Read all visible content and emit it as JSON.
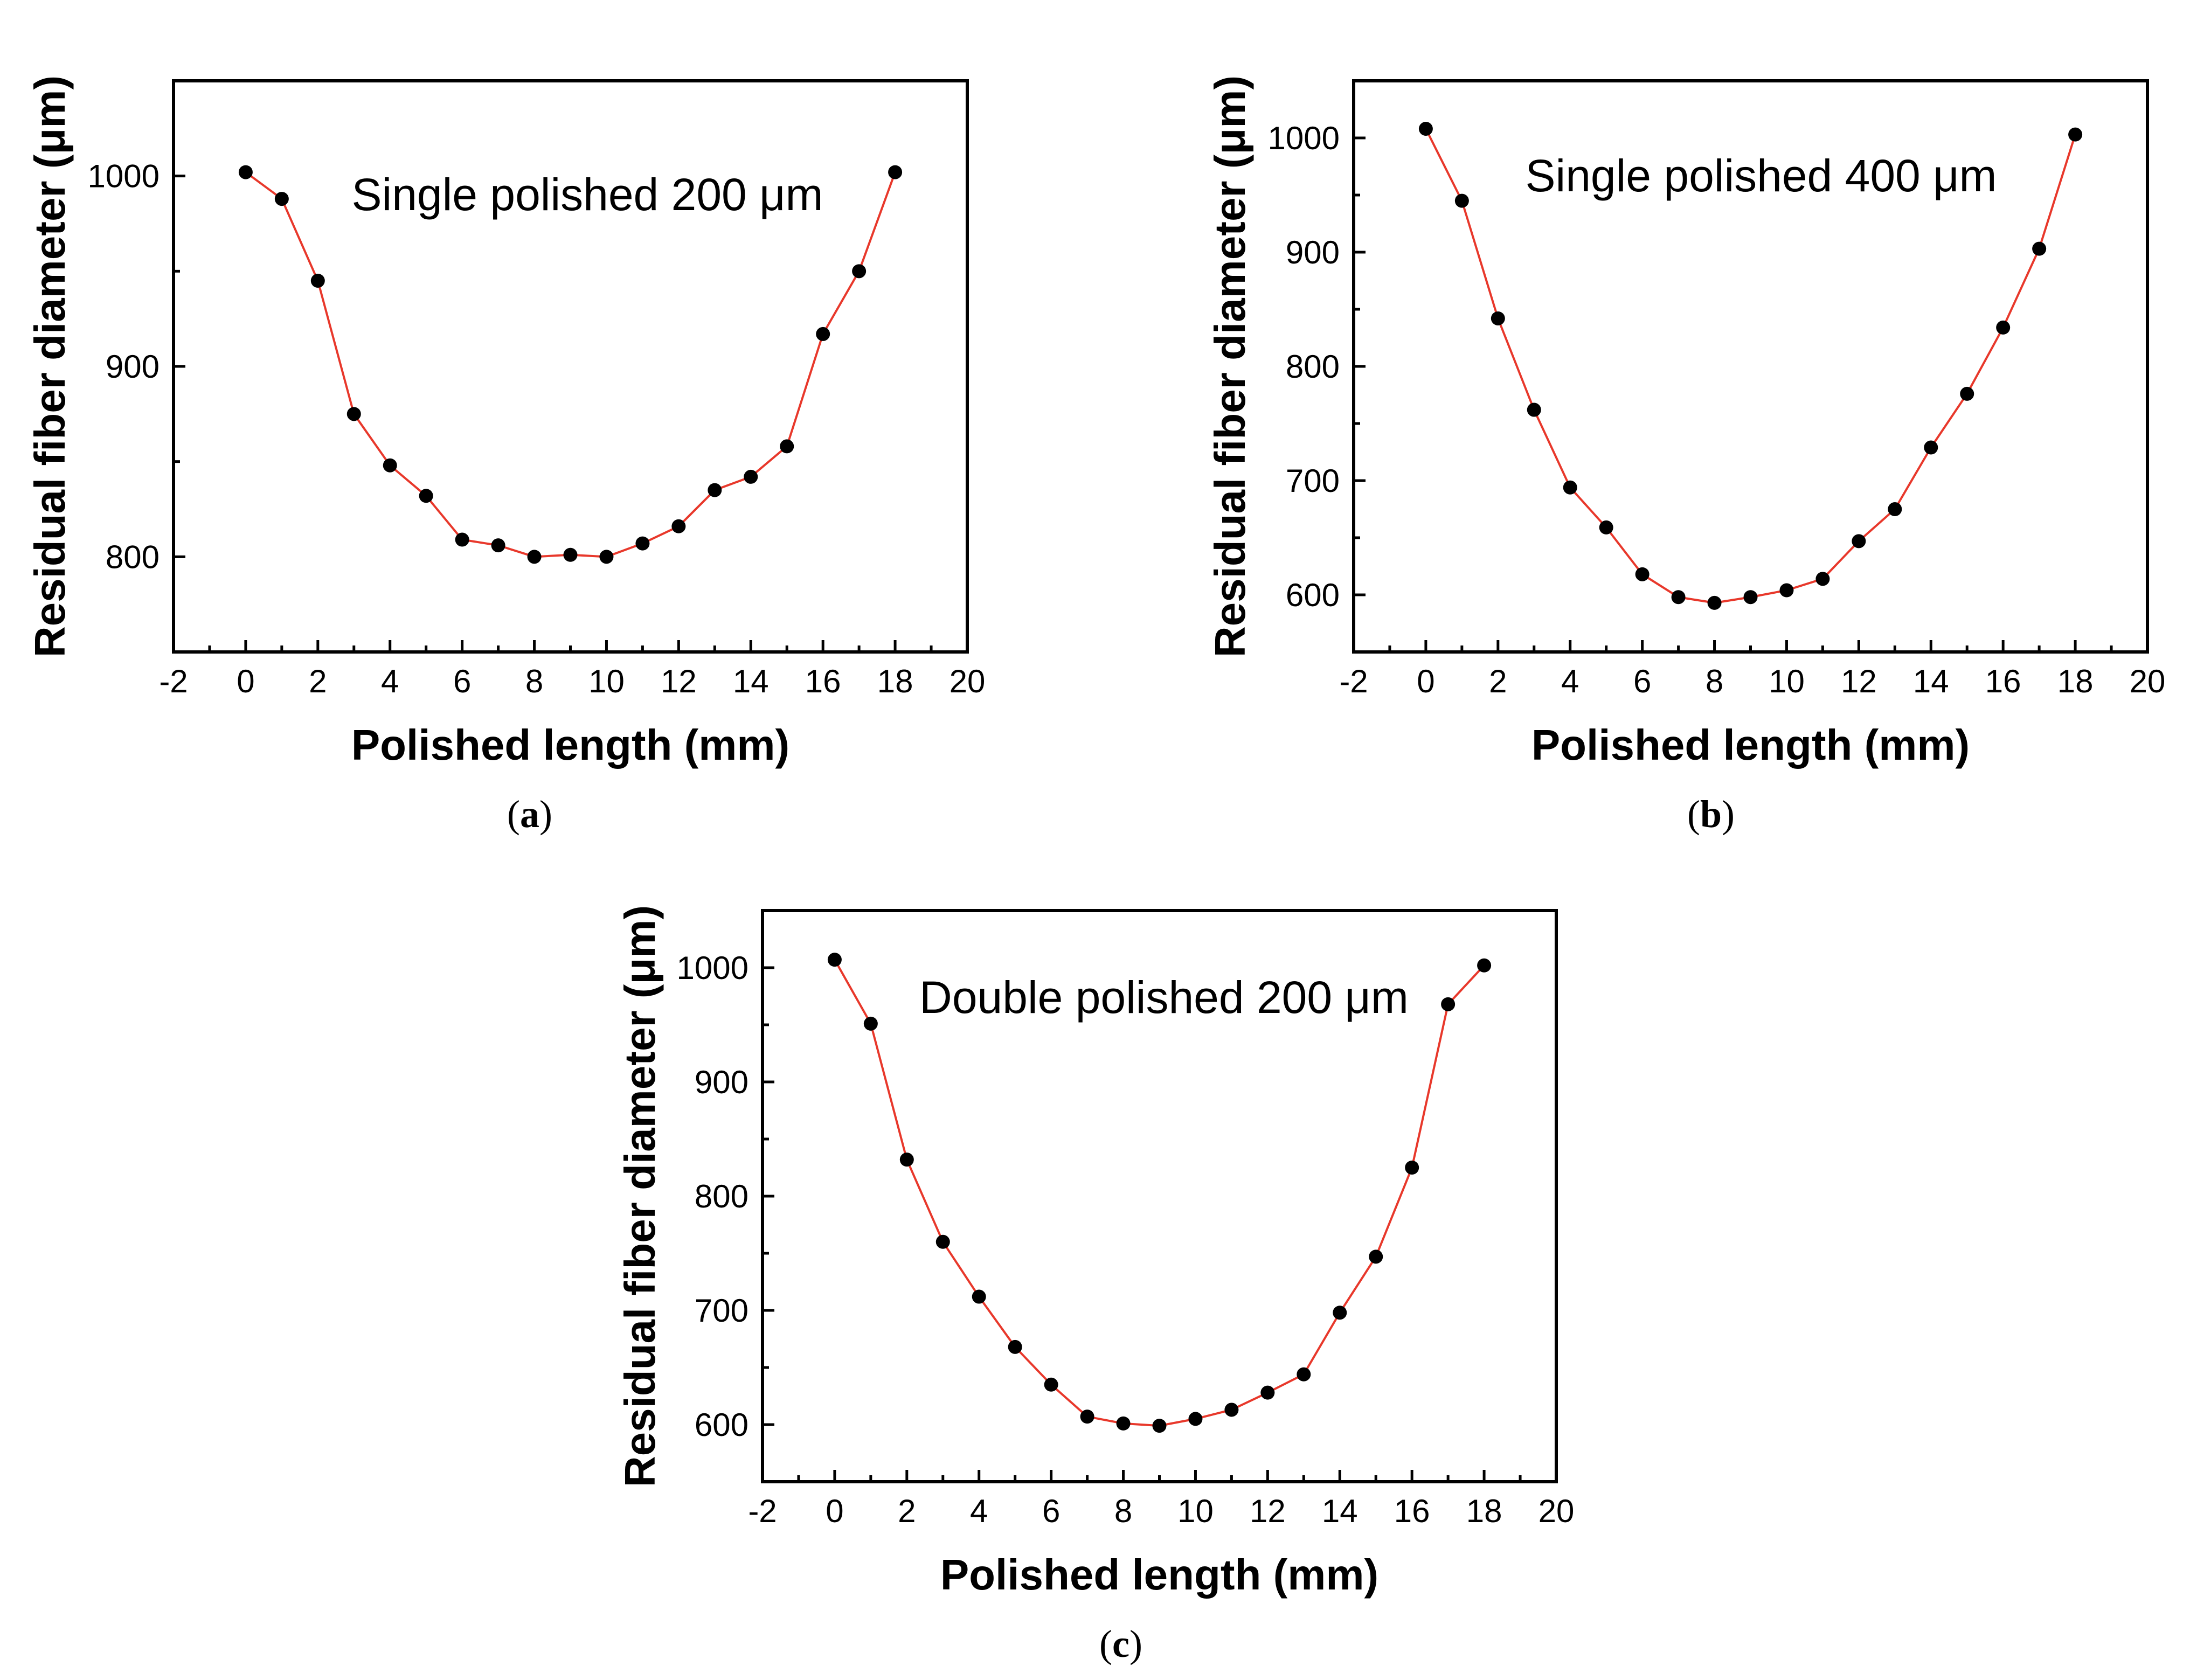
{
  "chart_data": [
    {
      "id": "a",
      "type": "line",
      "caption": "(a)",
      "caption_parts": [
        "(",
        "a",
        ")"
      ],
      "annotation": "Single polished 200 μm",
      "xlabel": "Polished length (mm)",
      "ylabel": "Residual fiber diameter (μm)",
      "xlim": [
        -2,
        20
      ],
      "ylim": [
        750,
        1050
      ],
      "xticks": [
        "-2",
        "0",
        "2",
        "4",
        "6",
        "8",
        "10",
        "12",
        "14",
        "16",
        "18",
        "20"
      ],
      "yticks": [
        "800",
        "900",
        "1000"
      ],
      "line_color": "#e8382b",
      "marker_color": "#000000",
      "series": [
        {
          "name": "Single polished 200 μm",
          "x": [
            0,
            1,
            2,
            3,
            4,
            5,
            6,
            7,
            8,
            9,
            10,
            11,
            12,
            13,
            14,
            15,
            16,
            17,
            18
          ],
          "y": [
            1002,
            988,
            945,
            875,
            848,
            832,
            809,
            806,
            800,
            801,
            800,
            807,
            816,
            835,
            842,
            858,
            917,
            950,
            1002
          ]
        }
      ]
    },
    {
      "id": "b",
      "type": "line",
      "caption": "(b)",
      "caption_parts": [
        "(",
        "b",
        ")"
      ],
      "annotation": "Single polished 400 μm",
      "xlabel": "Polished length (mm)",
      "ylabel": "Residual fiber diameter (μm)",
      "xlim": [
        -2,
        20
      ],
      "ylim": [
        550,
        1050
      ],
      "xticks": [
        "-2",
        "0",
        "2",
        "4",
        "6",
        "8",
        "10",
        "12",
        "14",
        "16",
        "18",
        "20"
      ],
      "yticks": [
        "600",
        "700",
        "800",
        "900",
        "1000"
      ],
      "line_color": "#e8382b",
      "marker_color": "#000000",
      "series": [
        {
          "name": "Single polished 400 μm",
          "x": [
            0,
            1,
            2,
            3,
            4,
            5,
            6,
            7,
            8,
            9,
            10,
            11,
            12,
            13,
            14,
            15,
            16,
            17,
            18
          ],
          "y": [
            1008,
            945,
            842,
            762,
            694,
            659,
            618,
            598,
            593,
            598,
            604,
            614,
            647,
            675,
            729,
            776,
            834,
            903,
            1003
          ]
        }
      ]
    },
    {
      "id": "c",
      "type": "line",
      "caption": "(c)",
      "caption_parts": [
        "(",
        "c",
        ")"
      ],
      "annotation": "Double polished 200 μm",
      "xlabel": "Polished length (mm)",
      "ylabel": "Residual fiber diameter (μm)",
      "xlim": [
        -2,
        20
      ],
      "ylim": [
        550,
        1050
      ],
      "xticks": [
        "-2",
        "0",
        "2",
        "4",
        "6",
        "8",
        "10",
        "12",
        "14",
        "16",
        "18",
        "20"
      ],
      "yticks": [
        "600",
        "700",
        "800",
        "900",
        "1000"
      ],
      "line_color": "#e8382b",
      "marker_color": "#000000",
      "series": [
        {
          "name": "Double polished 200 μm",
          "x": [
            0,
            1,
            2,
            3,
            4,
            5,
            6,
            7,
            8,
            9,
            10,
            11,
            12,
            13,
            14,
            15,
            16,
            17,
            18
          ],
          "y": [
            1007,
            951,
            832,
            760,
            712,
            668,
            635,
            607,
            601,
            599,
            605,
            613,
            628,
            644,
            698,
            747,
            825,
            968,
            1002
          ]
        }
      ]
    }
  ]
}
